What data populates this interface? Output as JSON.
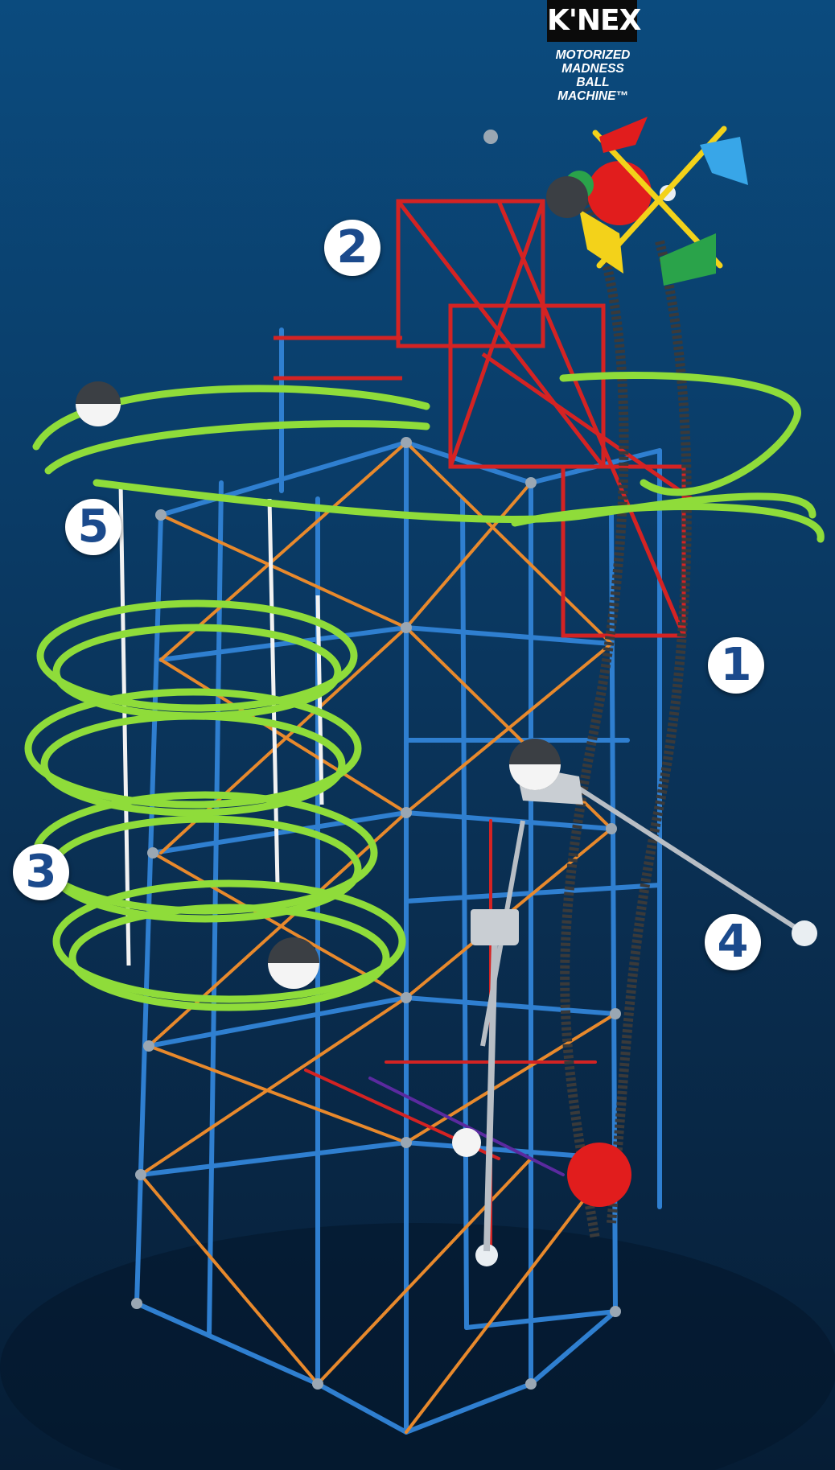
{
  "brand": {
    "logo_text": "K'NEX",
    "product_title": "MOTORIZED\nMADNESS\nBALL\nMACHINE™"
  },
  "step_markers": [
    {
      "id": "1",
      "label": "1"
    },
    {
      "id": "2",
      "label": "2"
    },
    {
      "id": "3",
      "label": "3"
    },
    {
      "id": "4",
      "label": "4"
    },
    {
      "id": "5",
      "label": "5"
    }
  ],
  "colors": {
    "background_top": "#0b4b7e",
    "background_bottom": "#061d35",
    "badge_fill": "#ffffff",
    "badge_text": "#1b4a8c",
    "rod_blue": "#2f7fd0",
    "rod_orange": "#e8892c",
    "rod_red": "#d42323",
    "rod_purple": "#5b2aa0",
    "track_green": "#8fdc3a",
    "chain_gray": "#3a3a3a",
    "flag_red": "#e11d1d",
    "flag_yellow": "#f3d21a",
    "flag_green": "#2aa34a",
    "flag_blue": "#38a6e8"
  }
}
